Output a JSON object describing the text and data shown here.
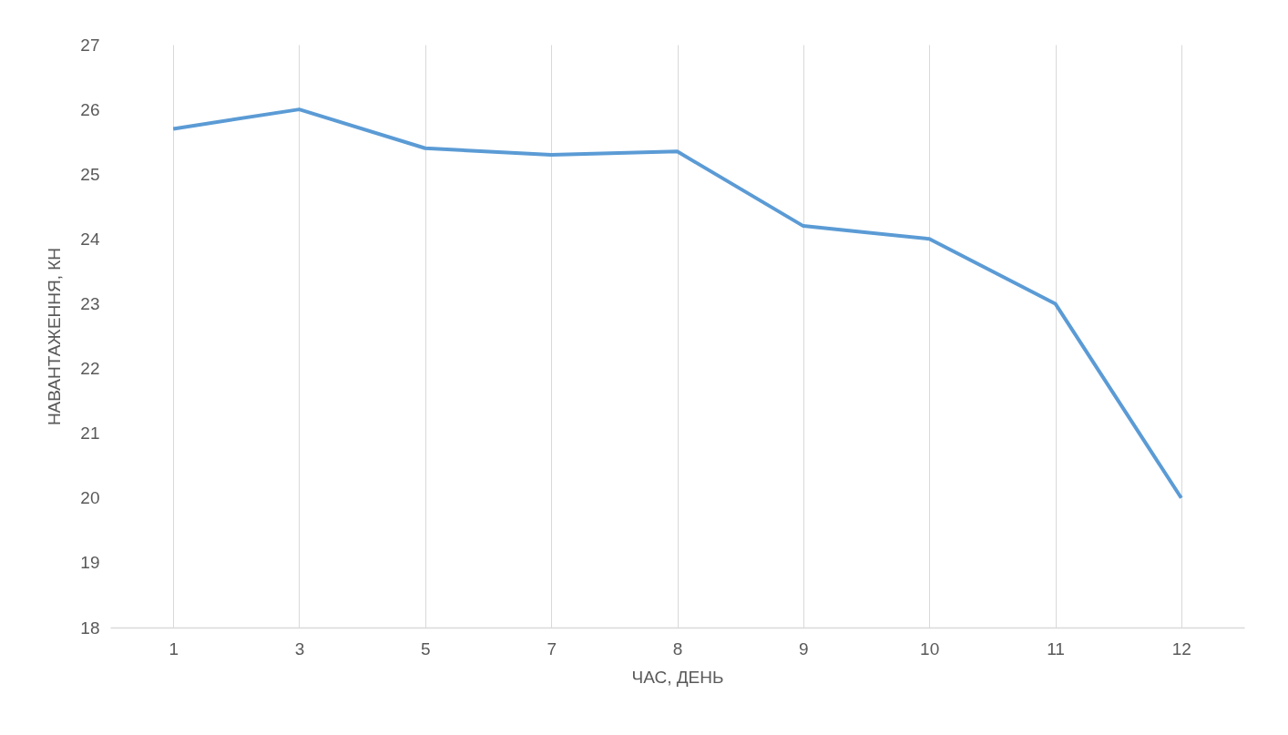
{
  "chart_data": {
    "type": "line",
    "xlabel": "ЧАС, ДЕНЬ",
    "ylabel": "НАВАНТАЖЕННЯ, КН",
    "categories": [
      "1",
      "3",
      "5",
      "7",
      "8",
      "9",
      "10",
      "11",
      "12"
    ],
    "series": [
      {
        "color": "#5b9bd5",
        "values": [
          25.7,
          26.0,
          25.4,
          25.3,
          25.35,
          24.2,
          24.0,
          23.0,
          20.0
        ]
      }
    ],
    "ylim": [
      18,
      27
    ],
    "yticks": [
      18,
      19,
      20,
      21,
      22,
      23,
      24,
      25,
      26,
      27
    ],
    "grid": "x",
    "legend": false,
    "marker": "none",
    "line_style": "solid"
  }
}
